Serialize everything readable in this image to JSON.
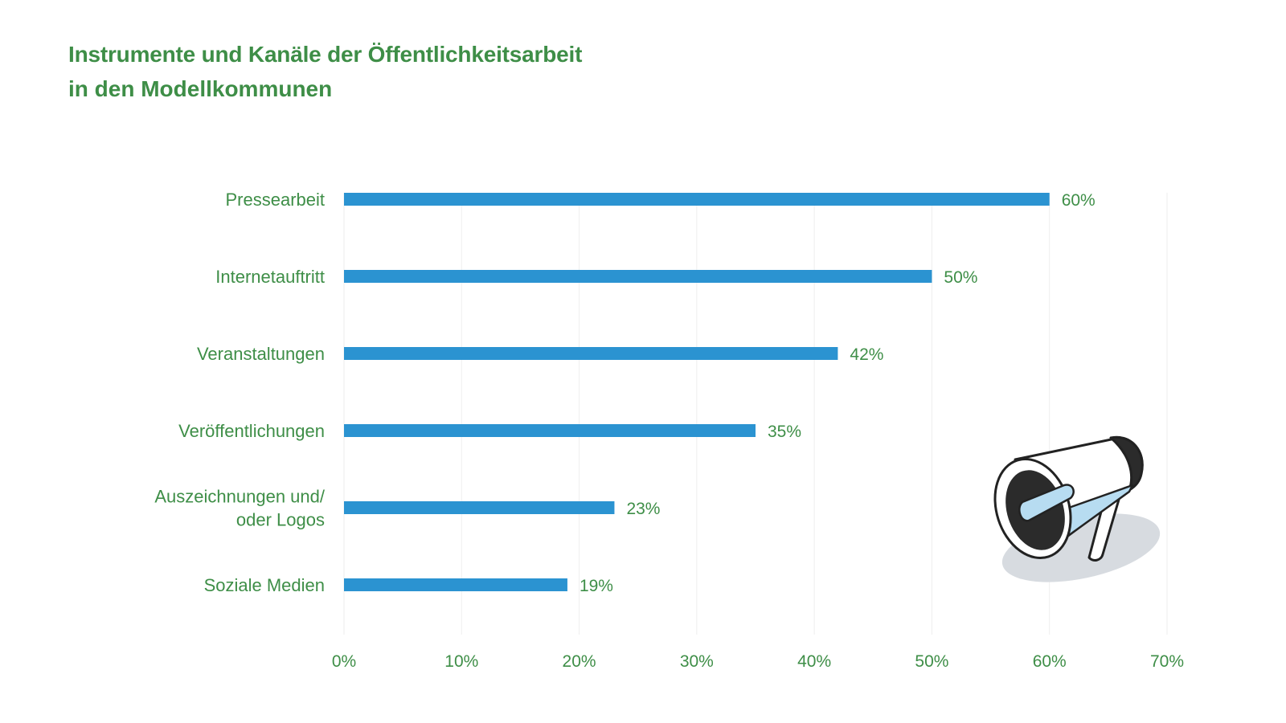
{
  "title": "Instrumente und Kanäle der Öffentlichkeitsarbeit",
  "subtitle": "in den Modellkommunen",
  "colors": {
    "bar": "#2b93d1",
    "text": "#3e8e47",
    "grid": "#eeeeee"
  },
  "icon": "megaphone-icon",
  "chart_data": {
    "type": "bar",
    "orientation": "horizontal",
    "title": "Instrumente und Kanäle der Öffentlichkeitsarbeit",
    "subtitle": "in den Modellkommunen",
    "categories": [
      [
        "Pressearbeit"
      ],
      [
        "Internetauftritt"
      ],
      [
        "Veranstaltungen"
      ],
      [
        "Veröffentlichungen"
      ],
      [
        "Auszeichnungen und/",
        "oder Logos"
      ],
      [
        "Soziale Medien"
      ]
    ],
    "values": [
      60,
      50,
      42,
      35,
      23,
      19
    ],
    "value_labels": [
      "60%",
      "50%",
      "42%",
      "35%",
      "23%",
      "19%"
    ],
    "xlim": [
      0,
      70
    ],
    "xticks": [
      0,
      10,
      20,
      30,
      40,
      50,
      60,
      70
    ],
    "xtick_labels": [
      "0%",
      "10%",
      "20%",
      "30%",
      "40%",
      "50%",
      "60%",
      "70%"
    ],
    "grid": "vertical",
    "legend": "none"
  }
}
